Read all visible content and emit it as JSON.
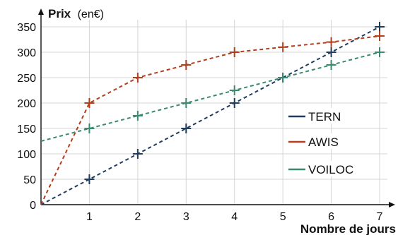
{
  "chart_data": {
    "type": "line",
    "ylabel_bold": "Prix",
    "ylabel_unit": "(en€)",
    "xlabel": "Nombre de jours",
    "xlim": [
      0,
      7
    ],
    "ylim": [
      0,
      350
    ],
    "xticks": [
      "1",
      "2",
      "3",
      "4",
      "5",
      "6",
      "7"
    ],
    "yticks": [
      "0",
      "50",
      "100",
      "150",
      "200",
      "250",
      "300",
      "350"
    ],
    "grid": true,
    "legend_position": "right",
    "series": [
      {
        "name": "TERN",
        "color": "#1f3c5e",
        "x": [
          0,
          1,
          2,
          3,
          4,
          5,
          6,
          7
        ],
        "y": [
          0,
          50,
          100,
          150,
          200,
          250,
          300,
          350
        ]
      },
      {
        "name": "AWIS",
        "color": "#b13e1c",
        "x": [
          0,
          1,
          2,
          3,
          4,
          5,
          6,
          7
        ],
        "y": [
          0,
          200,
          250,
          275,
          300,
          310,
          320,
          332
        ]
      },
      {
        "name": "VOILOC",
        "color": "#3a8a6e",
        "x": [
          0,
          1,
          2,
          3,
          4,
          5,
          6,
          7
        ],
        "y": [
          125,
          150,
          175,
          200,
          225,
          250,
          275,
          300
        ]
      }
    ]
  }
}
